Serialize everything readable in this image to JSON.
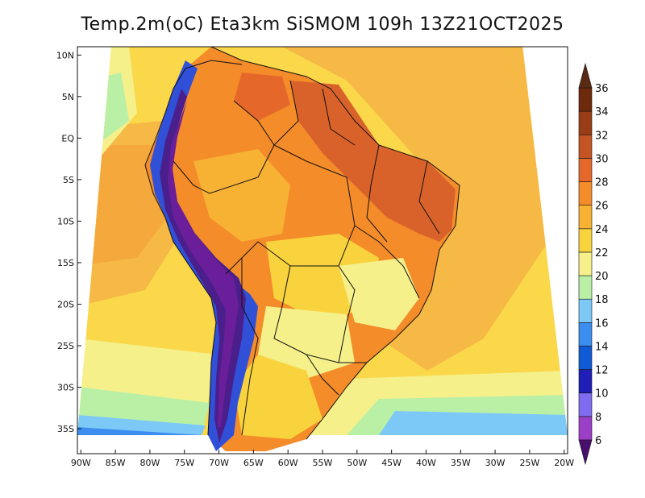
{
  "title": "Temp.2m(oC) Eta3km SiSMOM 109h 13Z21OCT2025",
  "map": {
    "lat_labels": [
      "10N",
      "5N",
      "EQ",
      "5S",
      "10S",
      "15S",
      "20S",
      "25S",
      "30S",
      "35S"
    ],
    "lon_labels": [
      "90W",
      "85W",
      "80W",
      "75W",
      "70W",
      "65W",
      "60W",
      "55W",
      "50W",
      "45W",
      "40W",
      "35W",
      "30W",
      "25W",
      "20W"
    ],
    "lat_range": [
      -38,
      11
    ],
    "lon_range": [
      -90.5,
      -19.5
    ]
  },
  "colorbar": {
    "labels": [
      "6",
      "8",
      "10",
      "12",
      "14",
      "16",
      "18",
      "20",
      "22",
      "24",
      "26",
      "28",
      "30",
      "32",
      "34",
      "36"
    ],
    "colors": [
      "#6a1e99",
      "#9b3fc9",
      "#7f6cf0",
      "#1f1fb8",
      "#0f5bd6",
      "#3b8ef0",
      "#7cc8f7",
      "#b9f0a6",
      "#f5f08a",
      "#f9d33d",
      "#f7b234",
      "#f48c2a",
      "#e5682a",
      "#c55423",
      "#9a3c16",
      "#6e2a0c"
    ],
    "min_color": "#4a0e6e",
    "max_color": "#5a2a14"
  },
  "colors": {
    "ocean_tropical": "#f7b945",
    "ocean_subtropical": "#fad84a",
    "ocean_cool": "#f5f08a",
    "ocean_cold": "#7cc8f7",
    "land_hot": "#f48c2a",
    "land_very_hot": "#d9622a",
    "andes_high": "#4a1f8c",
    "andes_mid": "#3050d8"
  }
}
